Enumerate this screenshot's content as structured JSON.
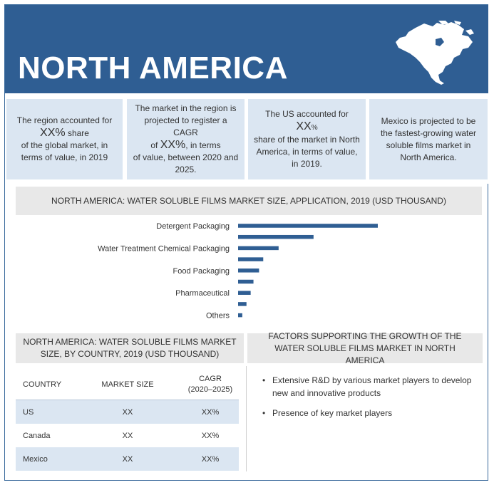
{
  "header": {
    "title": "NORTH AMERICA"
  },
  "stats": [
    {
      "line1": "The region accounted for",
      "big": "XX%",
      "after_big": " share",
      "line2": "of the global market, in terms of value, in 2019"
    },
    {
      "line1": "The market in the region is projected to register a CAGR",
      "pre_big": "of ",
      "big": "XX%",
      "after_big": ", in terms",
      "line2": "of value, between 2020 and 2025."
    },
    {
      "line1": "The US accounted for",
      "big": "XX",
      "after_big": "%",
      "line2": "share of the market in North America, in terms of value, in 2019."
    },
    {
      "line1": "Mexico is projected to be the fastest-growing water soluble films market in North America."
    }
  ],
  "chart_data": {
    "type": "bar",
    "orientation": "horizontal",
    "title": "NORTH AMERICA: WATER SOLUBLE FILMS MARKET SIZE, APPLICATION, 2019 (USD THOUSAND)",
    "categories": [
      "Detergent Packaging",
      "",
      "Water Treatment Chemical Packaging",
      "",
      "Food Packaging",
      "",
      "Pharmaceutical",
      "",
      "Others"
    ],
    "values": [
      100,
      54,
      29,
      18,
      15,
      11,
      9,
      6,
      3
    ],
    "xlabel": "",
    "ylabel": "",
    "xlim": [
      0,
      100
    ],
    "grid": false,
    "color": "#2f5e93"
  },
  "country_panel": {
    "title": "NORTH AMERICA: WATER SOLUBLE FILMS MARKET SIZE, BY COUNTRY, 2019 (USD THOUSAND)",
    "headers": [
      "COUNTRY",
      "MARKET SIZE",
      "CAGR",
      "(2020–2025)"
    ],
    "rows": [
      {
        "country": "US",
        "size": "XX",
        "cagr": "XX%"
      },
      {
        "country": "Canada",
        "size": "XX",
        "cagr": "XX%"
      },
      {
        "country": "Mexico",
        "size": "XX",
        "cagr": "XX%"
      }
    ]
  },
  "factors_panel": {
    "title": "FACTORS SUPPORTING THE GROWTH OF THE WATER SOLUBLE FILMS MARKET IN NORTH AMERICA",
    "bullet": "•",
    "items": [
      "Extensive R&D by various market players to develop new and innovative products",
      "Presence of key market players"
    ]
  }
}
